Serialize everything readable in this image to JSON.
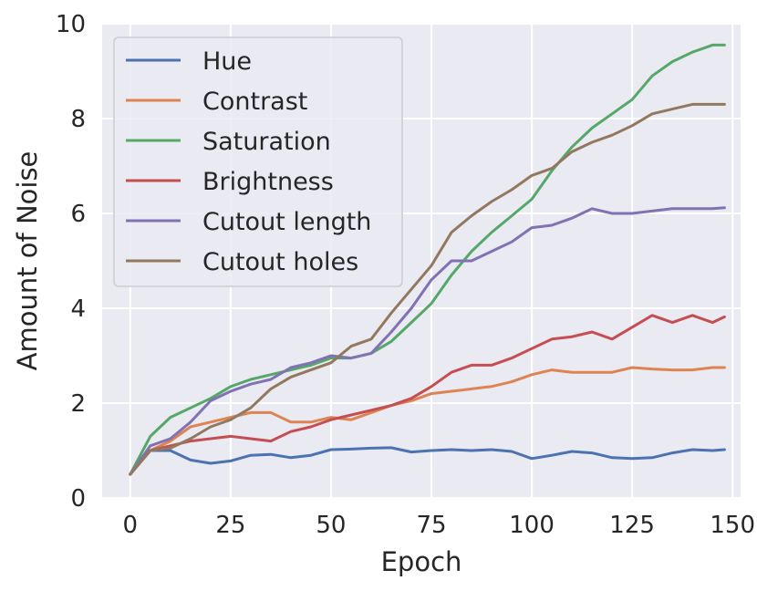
{
  "chart_data": {
    "type": "line",
    "xlabel": "Epoch",
    "ylabel": "Amount of Noise",
    "xlim": [
      -7,
      152
    ],
    "ylim": [
      0,
      10
    ],
    "xticks": [
      0,
      25,
      50,
      75,
      100,
      125,
      150
    ],
    "yticks": [
      0,
      2,
      4,
      6,
      8,
      10
    ],
    "grid": true,
    "legend_position": "top-left",
    "background": "#EAEAF2",
    "x": [
      0,
      5,
      10,
      15,
      20,
      25,
      30,
      35,
      40,
      45,
      50,
      55,
      60,
      65,
      70,
      75,
      80,
      85,
      90,
      95,
      100,
      105,
      110,
      115,
      120,
      125,
      130,
      135,
      140,
      145,
      148
    ],
    "series": [
      {
        "name": "Hue",
        "color": "#4C72B0",
        "values": [
          0.5,
          1.0,
          1.0,
          0.8,
          0.73,
          0.78,
          0.9,
          0.92,
          0.85,
          0.9,
          1.02,
          1.03,
          1.05,
          1.06,
          0.97,
          1.0,
          1.02,
          1.0,
          1.02,
          0.98,
          0.83,
          0.9,
          0.98,
          0.95,
          0.85,
          0.83,
          0.85,
          0.95,
          1.02,
          1.0,
          1.02
        ]
      },
      {
        "name": "Contrast",
        "color": "#DD8452",
        "values": [
          0.5,
          1.0,
          1.2,
          1.5,
          1.6,
          1.7,
          1.8,
          1.8,
          1.6,
          1.6,
          1.7,
          1.65,
          1.8,
          1.95,
          2.05,
          2.2,
          2.25,
          2.3,
          2.35,
          2.45,
          2.6,
          2.7,
          2.65,
          2.65,
          2.65,
          2.75,
          2.72,
          2.7,
          2.7,
          2.75,
          2.75
        ]
      },
      {
        "name": "Saturation",
        "color": "#55A868",
        "values": [
          0.5,
          1.3,
          1.7,
          1.9,
          2.1,
          2.35,
          2.5,
          2.6,
          2.7,
          2.8,
          2.95,
          2.95,
          3.05,
          3.3,
          3.7,
          4.1,
          4.7,
          5.2,
          5.6,
          5.95,
          6.3,
          6.9,
          7.4,
          7.8,
          8.1,
          8.4,
          8.9,
          9.2,
          9.4,
          9.55,
          9.55
        ]
      },
      {
        "name": "Brightness",
        "color": "#C44E52",
        "values": [
          0.5,
          1.0,
          1.1,
          1.2,
          1.25,
          1.3,
          1.25,
          1.2,
          1.4,
          1.5,
          1.65,
          1.75,
          1.85,
          1.95,
          2.1,
          2.35,
          2.65,
          2.8,
          2.8,
          2.95,
          3.15,
          3.35,
          3.4,
          3.5,
          3.35,
          3.6,
          3.85,
          3.7,
          3.85,
          3.7,
          3.82
        ]
      },
      {
        "name": "Cutout length",
        "color": "#8172B3",
        "values": [
          0.5,
          1.1,
          1.25,
          1.6,
          2.05,
          2.25,
          2.4,
          2.5,
          2.75,
          2.85,
          3.0,
          2.95,
          3.05,
          3.5,
          4.0,
          4.6,
          5.0,
          5.0,
          5.2,
          5.4,
          5.7,
          5.75,
          5.9,
          6.1,
          6.0,
          6.0,
          6.05,
          6.1,
          6.1,
          6.1,
          6.12
        ]
      },
      {
        "name": "Cutout holes",
        "color": "#937860",
        "values": [
          0.5,
          1.0,
          1.05,
          1.25,
          1.5,
          1.65,
          1.9,
          2.3,
          2.55,
          2.7,
          2.85,
          3.2,
          3.35,
          3.9,
          4.4,
          4.9,
          5.6,
          5.95,
          6.25,
          6.5,
          6.8,
          6.95,
          7.3,
          7.5,
          7.65,
          7.85,
          8.1,
          8.2,
          8.3,
          8.3,
          8.3
        ]
      }
    ]
  }
}
